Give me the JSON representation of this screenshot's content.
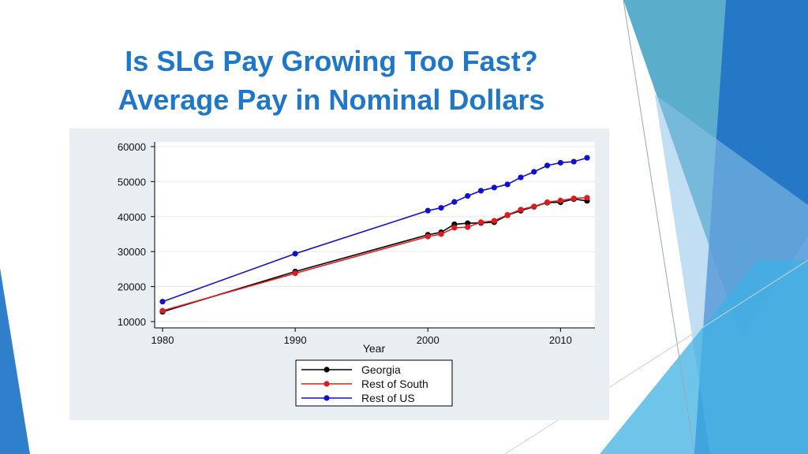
{
  "slide": {
    "title_line_1": "Is SLG Pay Growing Too Fast?",
    "title_line_2": "Average Pay in Nominal Dollars",
    "title_color": "#1f77c9"
  },
  "chart_data": {
    "type": "line",
    "title": "",
    "xlabel": "Year",
    "ylabel": "",
    "xlim": [
      1980,
      2012
    ],
    "ylim": [
      10000,
      60000
    ],
    "xticks": [
      1980,
      1990,
      2000,
      2010
    ],
    "yticks": [
      10000,
      20000,
      30000,
      40000,
      50000,
      60000
    ],
    "grid": "horizontal",
    "legend_position": "bottom-center",
    "x": [
      1980,
      1990,
      2000,
      2001,
      2002,
      2003,
      2004,
      2005,
      2006,
      2007,
      2008,
      2009,
      2010,
      2011,
      2012
    ],
    "series": [
      {
        "name": "Georgia",
        "color": "#000000",
        "values": [
          12800,
          24300,
          34800,
          35500,
          37800,
          38100,
          38200,
          38400,
          40400,
          41700,
          42800,
          44000,
          44100,
          45000,
          44500
        ]
      },
      {
        "name": "Rest of South",
        "color": "#e31a1c",
        "values": [
          13100,
          23800,
          34300,
          35000,
          36800,
          37000,
          38400,
          38800,
          40500,
          42000,
          42900,
          44100,
          44600,
          45200,
          45400
        ]
      },
      {
        "name": "Rest of US",
        "color": "#1010d0",
        "values": [
          15700,
          29400,
          41700,
          42500,
          44200,
          45900,
          47400,
          48300,
          49200,
          51200,
          52800,
          54600,
          55400,
          55700,
          56800
        ]
      }
    ]
  }
}
